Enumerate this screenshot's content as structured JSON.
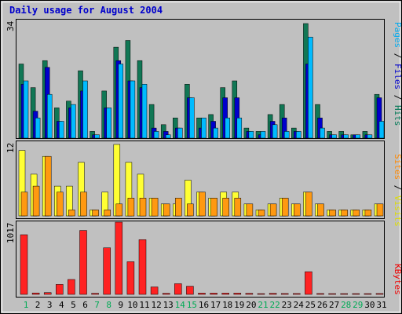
{
  "chart_data": [
    {
      "type": "bar",
      "title": "Daily usage for August 2004",
      "y_max_label": "34",
      "y_label_parts": [
        {
          "text": "Pages",
          "color": "#00aaee"
        },
        {
          "text": " / ",
          "color": "#000000"
        },
        {
          "text": "Files",
          "color": "#0000cc"
        },
        {
          "text": " / ",
          "color": "#000000"
        },
        {
          "text": "Hits",
          "color": "#007755"
        }
      ],
      "ylim": [
        0,
        34
      ],
      "categories": [
        "1",
        "2",
        "3",
        "4",
        "5",
        "6",
        "7",
        "8",
        "9",
        "10",
        "11",
        "12",
        "13",
        "14",
        "15",
        "16",
        "17",
        "18",
        "19",
        "20",
        "21",
        "22",
        "23",
        "24",
        "25",
        "26",
        "27",
        "28",
        "29",
        "30",
        "31"
      ],
      "weekend_days": [
        "1",
        "7",
        "8",
        "14",
        "15",
        "21",
        "22",
        "28",
        "29"
      ],
      "series": [
        {
          "name": "Hits",
          "color": "#117755",
          "values": [
            22,
            15,
            23,
            9,
            11,
            20,
            2,
            14,
            27,
            29,
            23,
            10,
            4,
            6,
            16,
            6,
            7,
            15,
            17,
            3,
            2,
            7,
            10,
            3,
            34,
            10,
            2,
            2,
            1,
            2,
            13
          ]
        },
        {
          "name": "Files",
          "color": "#0000cc",
          "values": [
            16,
            8,
            21,
            5,
            9,
            14,
            1,
            9,
            23,
            17,
            15,
            3,
            2,
            3,
            12,
            3,
            5,
            12,
            12,
            2,
            1,
            5,
            6,
            2,
            22,
            6,
            1,
            1,
            1,
            1,
            12
          ]
        },
        {
          "name": "Pages",
          "color": "#00bbff",
          "values": [
            17,
            6,
            13,
            5,
            10,
            17,
            1,
            9,
            22,
            17,
            16,
            2,
            1,
            3,
            12,
            6,
            3,
            6,
            6,
            2,
            2,
            4,
            2,
            2,
            30,
            3,
            1,
            1,
            1,
            1,
            5
          ]
        }
      ]
    },
    {
      "type": "bar",
      "y_max_label": "12",
      "y_label_parts": [
        {
          "text": "Sites",
          "color": "#ff8800"
        },
        {
          "text": " / ",
          "color": "#000000"
        },
        {
          "text": "Visits",
          "color": "#dddd00"
        }
      ],
      "ylim": [
        0,
        12
      ],
      "categories": [
        "1",
        "2",
        "3",
        "4",
        "5",
        "6",
        "7",
        "8",
        "9",
        "10",
        "11",
        "12",
        "13",
        "14",
        "15",
        "16",
        "17",
        "18",
        "19",
        "20",
        "21",
        "22",
        "23",
        "24",
        "25",
        "26",
        "27",
        "28",
        "29",
        "30",
        "31"
      ],
      "series": [
        {
          "name": "Visits",
          "color": "#ffff33",
          "values": [
            11,
            7,
            10,
            5,
            5,
            9,
            1,
            4,
            12,
            9,
            7,
            3,
            2,
            2,
            6,
            4,
            3,
            4,
            4,
            2,
            1,
            2,
            3,
            2,
            4,
            2,
            1,
            1,
            1,
            1,
            2
          ]
        },
        {
          "name": "Sites",
          "color": "#ff9911",
          "values": [
            4,
            5,
            10,
            4,
            1,
            4,
            1,
            1,
            2,
            3,
            3,
            3,
            2,
            3,
            2,
            4,
            3,
            3,
            3,
            2,
            1,
            2,
            3,
            2,
            4,
            2,
            1,
            1,
            1,
            1,
            2
          ]
        }
      ]
    },
    {
      "type": "bar",
      "y_max_label": "1017",
      "y_label_parts": [
        {
          "text": "KBytes",
          "color": "#ee0000"
        }
      ],
      "ylim": [
        0,
        1017
      ],
      "categories": [
        "1",
        "2",
        "3",
        "4",
        "5",
        "6",
        "7",
        "8",
        "9",
        "10",
        "11",
        "12",
        "13",
        "14",
        "15",
        "16",
        "17",
        "18",
        "19",
        "20",
        "21",
        "22",
        "23",
        "24",
        "25",
        "26",
        "27",
        "28",
        "29",
        "30",
        "31"
      ],
      "series": [
        {
          "name": "KBytes",
          "color": "#ff2222",
          "values": [
            840,
            20,
            25,
            140,
            210,
            900,
            15,
            655,
            1017,
            460,
            770,
            105,
            15,
            150,
            115,
            18,
            18,
            18,
            18,
            15,
            10,
            15,
            12,
            12,
            320,
            12,
            10,
            10,
            10,
            10,
            12
          ]
        }
      ]
    }
  ],
  "colors": {
    "title": "#0000cc",
    "panel_bg": "#c0c0c0",
    "weekday_label": "#000000",
    "weekend_label": "#00aa55"
  }
}
